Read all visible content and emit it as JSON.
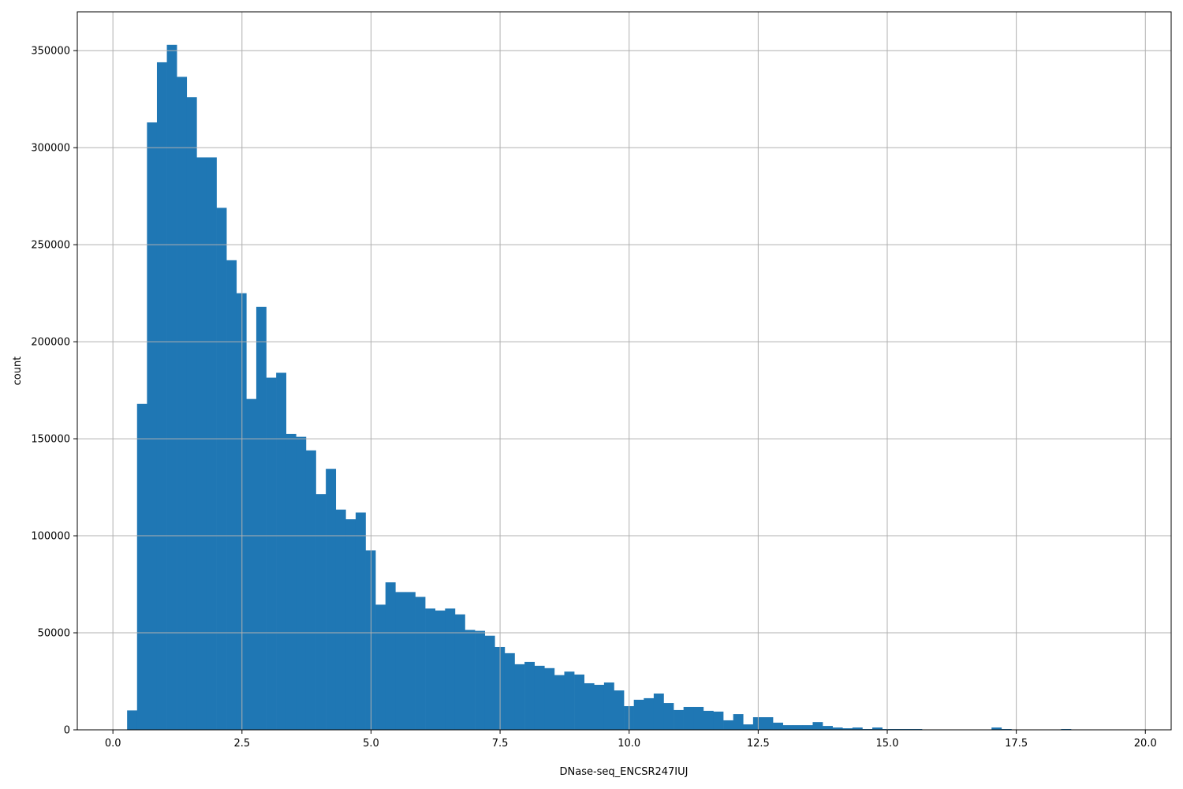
{
  "chart_data": {
    "type": "bar",
    "subtype": "histogram",
    "title": "",
    "xlabel": "DNase-seq_ENCSR247IUJ",
    "ylabel": "count",
    "xlim": [
      -0.69,
      20.5
    ],
    "ylim": [
      0,
      370000
    ],
    "grid": true,
    "bar_color": "#1f77b4",
    "grid_color": "#b0b0b0",
    "bin_range": [
      0.275,
      18.56
    ],
    "x_ticks": [
      0,
      2.5,
      5,
      7.5,
      10,
      12.5,
      15,
      17.5,
      20
    ],
    "x_tick_labels": [
      "0.0",
      "2.5",
      "5.0",
      "7.5",
      "10.0",
      "12.5",
      "15.0",
      "17.5",
      "20.0"
    ],
    "y_ticks": [
      0,
      50000,
      100000,
      150000,
      200000,
      250000,
      300000,
      350000
    ],
    "y_tick_labels": [
      "0",
      "50000",
      "100000",
      "150000",
      "200000",
      "250000",
      "300000",
      "350000"
    ],
    "counts": [
      10000,
      168000,
      313000,
      344000,
      353000,
      336500,
      326000,
      295000,
      295000,
      269000,
      242000,
      225000,
      170500,
      218000,
      181500,
      184000,
      152500,
      151000,
      144000,
      121500,
      134500,
      113500,
      108500,
      112000,
      92500,
      64500,
      76000,
      71000,
      71000,
      68500,
      62500,
      61500,
      62500,
      59500,
      51500,
      51000,
      48500,
      42700,
      39500,
      33800,
      35000,
      33000,
      31800,
      28200,
      30000,
      28500,
      24000,
      23200,
      24400,
      20300,
      12200,
      15500,
      16300,
      18700,
      13800,
      10200,
      11800,
      11800,
      9800,
      9400,
      4900,
      8100,
      2800,
      6500,
      6500,
      3700,
      2400,
      2400,
      2400,
      4000,
      2000,
      1200,
      800,
      1200,
      400,
      1200,
      400,
      400,
      400,
      400,
      0,
      0,
      0,
      0,
      0,
      0,
      0,
      1200,
      400,
      0,
      0,
      0,
      0,
      0,
      400
    ]
  }
}
